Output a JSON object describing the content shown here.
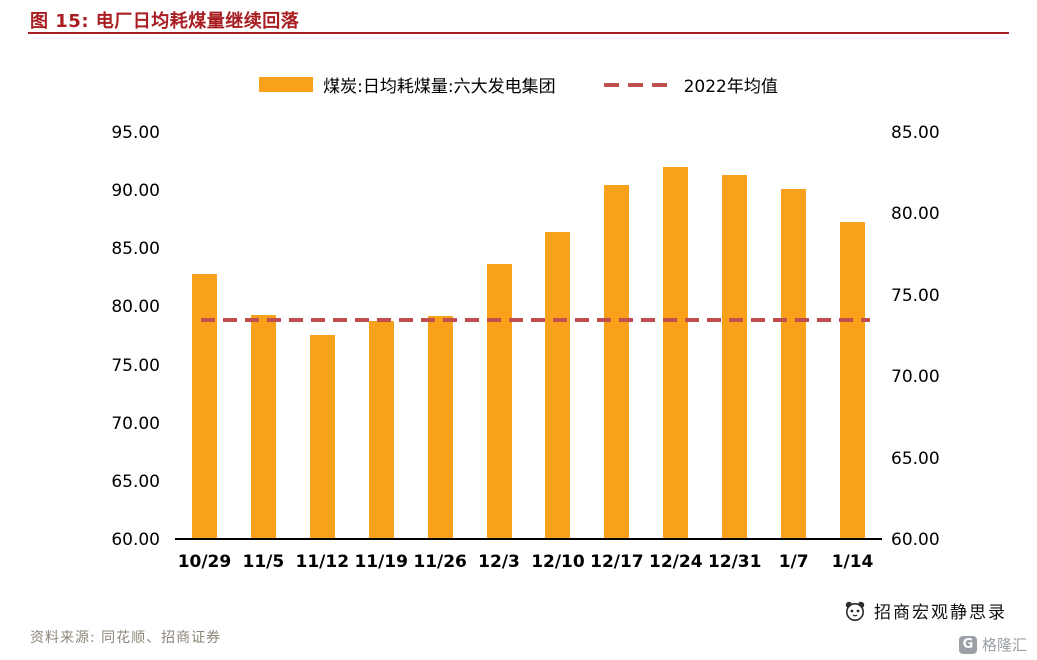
{
  "header": {
    "title": "图 15:  电厂日均耗煤量继续回落"
  },
  "legend": {
    "bar": {
      "label": "煤炭:日均耗煤量:六大发电集团",
      "color": "#F9A11B"
    },
    "dash": {
      "label": "2022年均值",
      "color": "#C0504D"
    }
  },
  "chart_data": {
    "type": "bar",
    "title": "电厂日均耗煤量继续回落",
    "categories": [
      "10/29",
      "11/5",
      "11/12",
      "11/19",
      "11/26",
      "12/3",
      "12/10",
      "12/17",
      "12/24",
      "12/31",
      "1/7",
      "1/14"
    ],
    "series": [
      {
        "name": "煤炭:日均耗煤量:六大发电集团",
        "axis": "left",
        "color": "#F9A11B",
        "values": [
          82.7,
          79.2,
          77.5,
          78.7,
          79.1,
          83.6,
          86.3,
          90.4,
          91.9,
          91.2,
          90.0,
          87.2
        ]
      }
    ],
    "average_line": {
      "name": "2022年均值",
      "value_left_axis": 78.9,
      "color": "#C0504D",
      "style": "dashed"
    },
    "left_axis": {
      "min": 60,
      "max": 95,
      "step": 5,
      "ticks": [
        "95.00",
        "90.00",
        "85.00",
        "80.00",
        "75.00",
        "70.00",
        "65.00",
        "60.00"
      ]
    },
    "right_axis": {
      "min": 60,
      "max": 85,
      "step": 5,
      "ticks": [
        "85.00",
        "80.00",
        "75.00",
        "70.00",
        "65.00",
        "60.00"
      ]
    },
    "grid": false,
    "legend_position": "top"
  },
  "footer": {
    "source": "资料来源: 同花顺、招商证券",
    "watermark": "招商宏观静思录",
    "logo_badge": "G",
    "logo_text": "格隆汇"
  }
}
